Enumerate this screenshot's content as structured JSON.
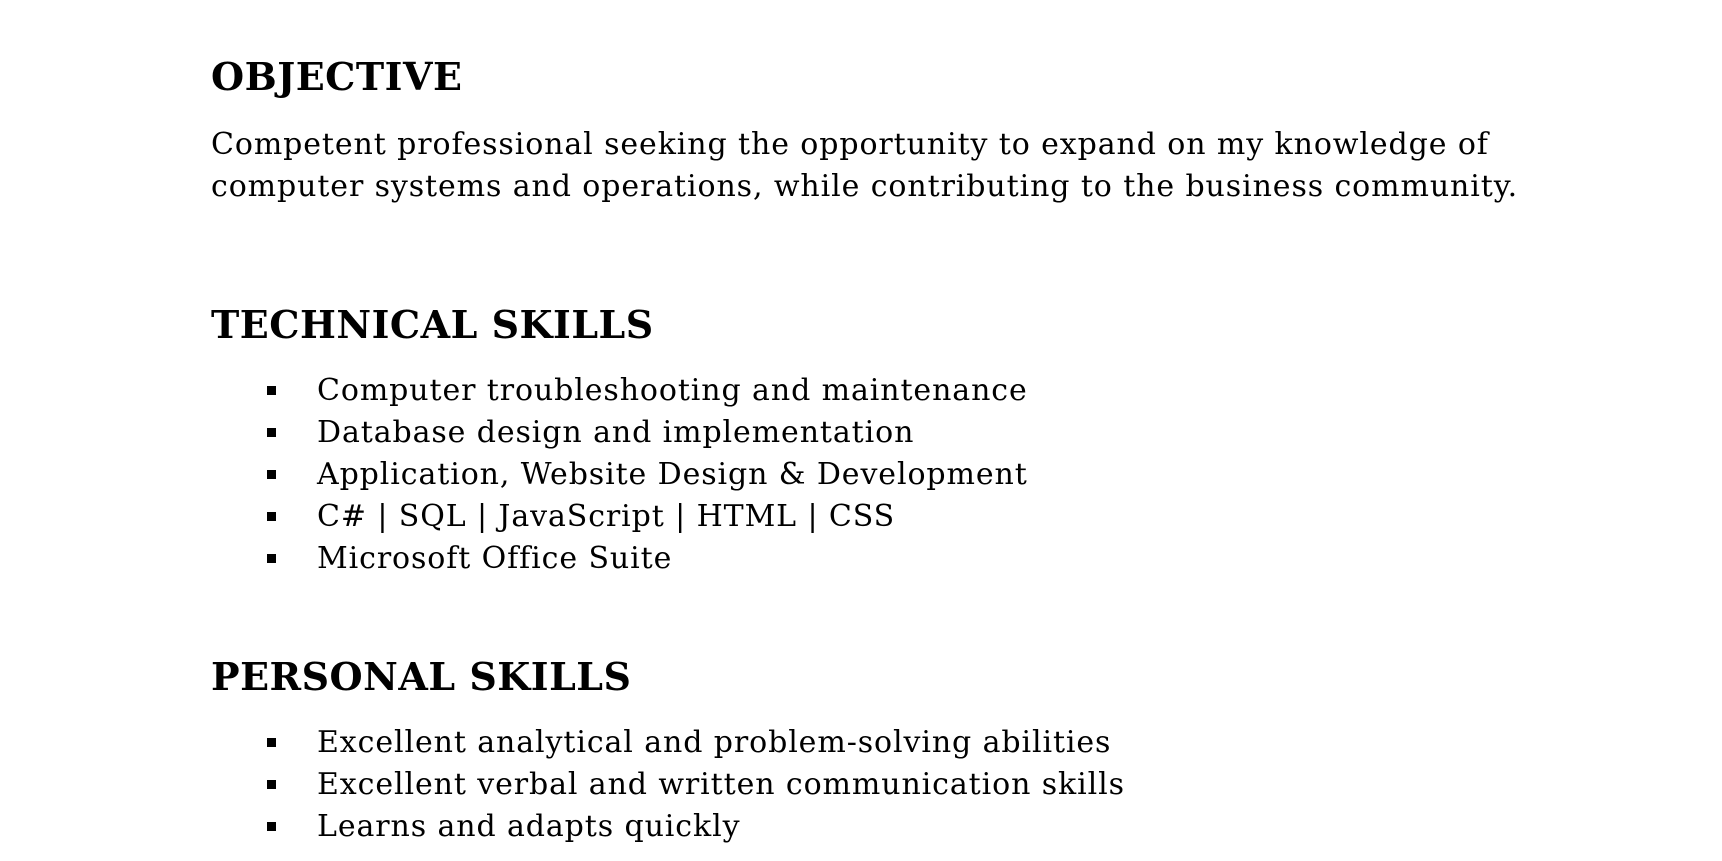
{
  "objective": {
    "heading": "OBJECTIVE",
    "text_line_1": "Competent professional seeking the opportunity to expand on my knowledge of",
    "text_line_2": "computer systems and operations, while contributing to the business community."
  },
  "technical_skills": {
    "heading": "TECHNICAL SKILLS",
    "items": [
      "Computer troubleshooting and maintenance",
      "Database design and implementation",
      "Application, Website Design & Development",
      "C# | SQL | JavaScript | HTML | CSS",
      "Microsoft Office Suite"
    ]
  },
  "personal_skills": {
    "heading": "PERSONAL SKILLS",
    "items": [
      "Excellent analytical and problem-solving abilities",
      "Excellent verbal and written communication skills",
      "Learns and adapts quickly"
    ]
  },
  "colors": {
    "text": "#000000",
    "background": "#ffffff"
  }
}
